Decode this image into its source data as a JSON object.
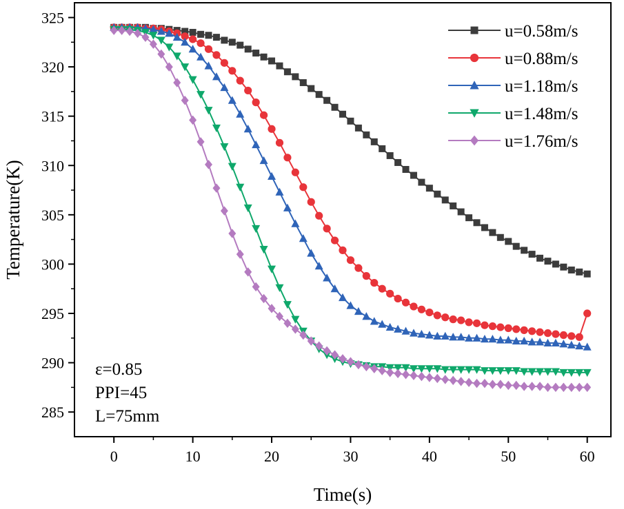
{
  "chart_data": {
    "type": "line",
    "xlabel": "Time(s)",
    "ylabel": "Temperature(K)",
    "xlim": [
      -5,
      63
    ],
    "ylim": [
      282.5,
      326.5
    ],
    "xticks": [
      0,
      10,
      20,
      30,
      40,
      50,
      60
    ],
    "yticks": [
      285,
      290,
      295,
      300,
      305,
      310,
      315,
      320,
      325
    ],
    "legend_position": "top-right",
    "annotations": [
      "ε=0.85",
      "PPI=45",
      "L=75mm"
    ],
    "x": [
      0,
      1,
      2,
      3,
      4,
      5,
      6,
      7,
      8,
      9,
      10,
      11,
      12,
      13,
      14,
      15,
      16,
      17,
      18,
      19,
      20,
      21,
      22,
      23,
      24,
      25,
      26,
      27,
      28,
      29,
      30,
      31,
      32,
      33,
      34,
      35,
      36,
      37,
      38,
      39,
      40,
      41,
      42,
      43,
      44,
      45,
      46,
      47,
      48,
      49,
      50,
      51,
      52,
      53,
      54,
      55,
      56,
      57,
      58,
      59,
      60
    ],
    "series": [
      {
        "name": "u=0.58m/s",
        "color": "#3c3c3c",
        "marker": "square",
        "values": [
          324.0,
          324.0,
          324.0,
          324.0,
          324.0,
          323.9,
          323.9,
          323.8,
          323.7,
          323.6,
          323.5,
          323.3,
          323.2,
          323.0,
          322.7,
          322.5,
          322.2,
          321.8,
          321.4,
          321.0,
          320.6,
          320.1,
          319.5,
          319.0,
          318.4,
          317.8,
          317.2,
          316.6,
          315.9,
          315.2,
          314.5,
          313.8,
          313.1,
          312.4,
          311.7,
          311.0,
          310.3,
          309.6,
          309.0,
          308.3,
          307.7,
          307.1,
          306.5,
          305.9,
          305.3,
          304.7,
          304.2,
          303.7,
          303.2,
          302.7,
          302.3,
          301.8,
          301.4,
          301.0,
          300.6,
          300.3,
          300.0,
          299.7,
          299.4,
          299.2,
          299.0
        ]
      },
      {
        "name": "u=0.88m/s",
        "color": "#e8343a",
        "marker": "circle",
        "values": [
          324.0,
          324.0,
          324.0,
          324.0,
          323.9,
          323.9,
          323.8,
          323.6,
          323.4,
          323.1,
          322.8,
          322.4,
          321.8,
          321.2,
          320.4,
          319.6,
          318.6,
          317.6,
          316.4,
          315.1,
          313.7,
          312.3,
          310.8,
          309.3,
          307.8,
          306.3,
          304.9,
          303.6,
          302.4,
          301.4,
          300.4,
          299.6,
          298.8,
          298.1,
          297.5,
          297.0,
          296.5,
          296.1,
          295.7,
          295.4,
          295.1,
          294.8,
          294.6,
          294.4,
          294.3,
          294.1,
          294.0,
          293.8,
          293.7,
          293.6,
          293.5,
          293.4,
          293.3,
          293.2,
          293.1,
          293.0,
          292.9,
          292.8,
          292.7,
          292.6,
          295.0
        ]
      },
      {
        "name": "u=1.18m/s",
        "color": "#2f64b8",
        "marker": "triangle-up",
        "values": [
          324.0,
          324.0,
          324.0,
          324.0,
          323.9,
          323.8,
          323.6,
          323.4,
          323.0,
          322.5,
          321.8,
          321.0,
          320.1,
          319.0,
          317.9,
          316.6,
          315.2,
          313.7,
          312.1,
          310.5,
          308.9,
          307.3,
          305.7,
          304.1,
          302.6,
          301.1,
          299.8,
          298.6,
          297.5,
          296.6,
          295.8,
          295.2,
          294.7,
          294.2,
          293.9,
          293.6,
          293.4,
          293.2,
          293.0,
          292.9,
          292.8,
          292.7,
          292.7,
          292.6,
          292.6,
          292.5,
          292.5,
          292.4,
          292.4,
          292.3,
          292.3,
          292.2,
          292.2,
          292.1,
          292.1,
          292.0,
          292.0,
          291.9,
          291.8,
          291.7,
          291.6
        ]
      },
      {
        "name": "u=1.48m/s",
        "color": "#0fa86b",
        "marker": "triangle-down",
        "values": [
          323.8,
          323.8,
          323.8,
          323.7,
          323.5,
          323.2,
          322.7,
          322.0,
          321.1,
          320.0,
          318.7,
          317.2,
          315.6,
          313.8,
          311.9,
          309.9,
          307.8,
          305.7,
          303.6,
          301.5,
          299.5,
          297.6,
          295.9,
          294.4,
          293.2,
          292.2,
          291.4,
          290.8,
          290.4,
          290.1,
          289.9,
          289.8,
          289.7,
          289.6,
          289.6,
          289.5,
          289.5,
          289.5,
          289.4,
          289.4,
          289.4,
          289.4,
          289.3,
          289.3,
          289.3,
          289.3,
          289.3,
          289.2,
          289.2,
          289.2,
          289.2,
          289.2,
          289.1,
          289.1,
          289.1,
          289.1,
          289.1,
          289.0,
          289.0,
          289.0,
          289.0
        ]
      },
      {
        "name": "u=1.76m/s",
        "color": "#b47bc0",
        "marker": "diamond",
        "values": [
          323.7,
          323.7,
          323.6,
          323.4,
          323.0,
          322.3,
          321.3,
          320.0,
          318.4,
          316.6,
          314.6,
          312.4,
          310.1,
          307.7,
          305.4,
          303.1,
          301.0,
          299.2,
          297.7,
          296.5,
          295.5,
          294.7,
          294.0,
          293.4,
          292.8,
          292.2,
          291.7,
          291.2,
          290.8,
          290.4,
          290.1,
          289.8,
          289.6,
          289.4,
          289.2,
          289.0,
          288.9,
          288.8,
          288.7,
          288.6,
          288.5,
          288.4,
          288.3,
          288.2,
          288.1,
          288.0,
          287.9,
          287.9,
          287.8,
          287.8,
          287.7,
          287.7,
          287.6,
          287.6,
          287.6,
          287.5,
          287.5,
          287.5,
          287.5,
          287.5,
          287.5
        ]
      }
    ]
  }
}
